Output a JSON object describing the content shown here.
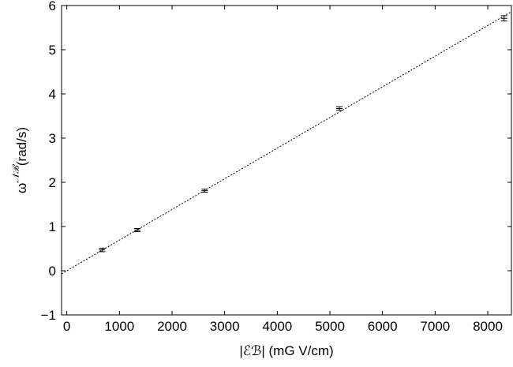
{
  "chart_data": {
    "type": "scatter",
    "title": "",
    "xlabel": "|ℰℬ| (mG V/cm)",
    "ylabel": {
      "symbol": "ω",
      "superscript": "𝒩ℬ",
      "unit": "(rad/s)"
    },
    "xlim": [
      -100,
      8450
    ],
    "ylim": [
      -1,
      6
    ],
    "xticks": [
      0,
      1000,
      2000,
      3000,
      4000,
      5000,
      6000,
      7000,
      8000
    ],
    "yticks": [
      -1,
      0,
      1,
      2,
      3,
      4,
      5,
      6
    ],
    "xtick_labels": [
      "0",
      "1000",
      "2000",
      "3000",
      "4000",
      "5000",
      "6000",
      "7000",
      "8000"
    ],
    "ytick_labels": [
      "−1",
      "0",
      "1",
      "2",
      "3",
      "4",
      "5",
      "6"
    ],
    "grid": false,
    "points": [
      {
        "x": 670,
        "y": 0.47,
        "err": 0.04
      },
      {
        "x": 1340,
        "y": 0.92,
        "err": 0.035
      },
      {
        "x": 2620,
        "y": 1.81,
        "err": 0.035
      },
      {
        "x": 5180,
        "y": 3.67,
        "err": 0.04
      },
      {
        "x": 8310,
        "y": 5.71,
        "err": 0.06
      }
    ],
    "fit_line": {
      "style": "dotted",
      "x": [
        -100,
        8450
      ],
      "y": [
        -0.07,
        5.86
      ]
    }
  }
}
